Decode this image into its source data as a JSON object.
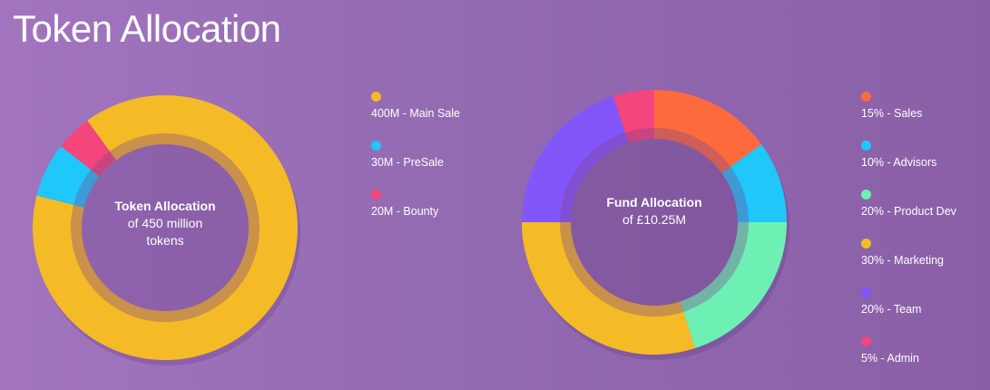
{
  "page": {
    "title": "Token Allocation"
  },
  "chart_data": [
    {
      "type": "pie",
      "variant": "donut",
      "title": "Token Allocation",
      "center_title": "Token Allocation",
      "center_subtitle_lines": [
        "of 450 million",
        "tokens"
      ],
      "unit": "M tokens",
      "categories": [
        "Main Sale",
        "PreSale",
        "Bounty"
      ],
      "values": [
        400,
        30,
        20
      ],
      "colors": [
        "#f4bb26",
        "#1fc7fa",
        "#f5457d"
      ],
      "legend_labels": [
        "400M - Main Sale",
        "30M - PreSale",
        "20M - Bounty"
      ],
      "legend_position": "right"
    },
    {
      "type": "pie",
      "variant": "donut",
      "title": "Fund Allocation",
      "center_title": "Fund Allocation",
      "center_subtitle_lines": [
        "of £10.25M"
      ],
      "unit": "%",
      "categories": [
        "Sales",
        "Advisors",
        "Product Dev",
        "Marketing",
        "Team",
        "Admin"
      ],
      "values": [
        15,
        10,
        20,
        30,
        20,
        5
      ],
      "colors": [
        "#fd6b3d",
        "#1fc7fa",
        "#6ef0b4",
        "#f4bb26",
        "#8356fa",
        "#f5457d"
      ],
      "legend_labels": [
        "15% - Sales",
        "10% - Advisors",
        "20% - Product Dev",
        "30% - Marketing",
        "20% - Team",
        "5% - Admin"
      ],
      "legend_position": "right"
    }
  ]
}
